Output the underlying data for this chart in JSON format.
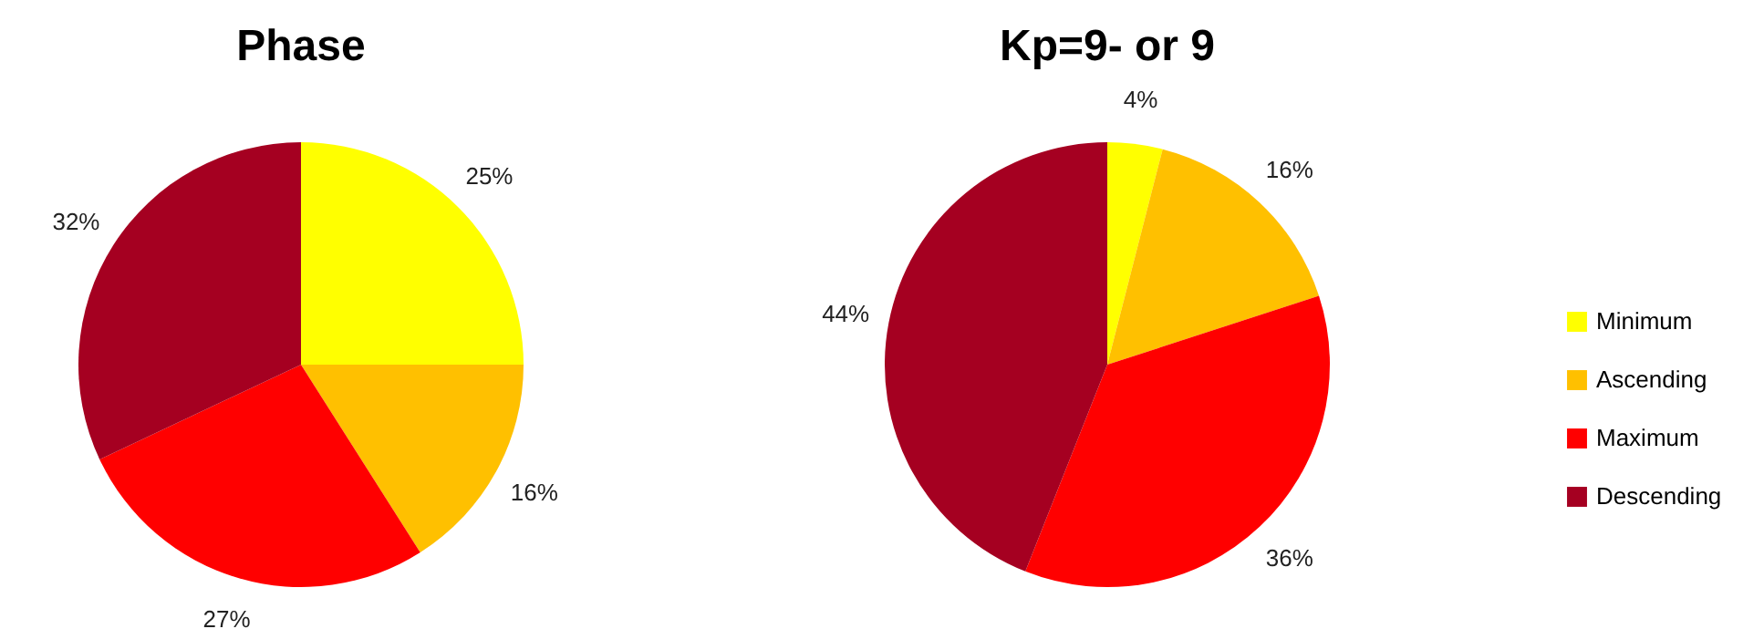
{
  "chart_data": [
    {
      "type": "pie",
      "title": "Phase",
      "categories": [
        null,
        null,
        null,
        null
      ],
      "values": [
        25,
        16,
        27,
        32
      ],
      "colors": [
        "#ffff00",
        "#ffc000",
        "#ff0000",
        "#a50021"
      ],
      "value_labels": [
        "25%",
        "16%",
        "27%",
        "32%"
      ],
      "legend": false
    },
    {
      "type": "pie",
      "title": "Kp=9- or 9",
      "categories": [
        "Minimum",
        "Ascending",
        "Maximum",
        "Descending"
      ],
      "values": [
        4,
        16,
        36,
        44
      ],
      "colors": [
        "#ffff00",
        "#ffc000",
        "#ff0000",
        "#a50021"
      ],
      "value_labels": [
        "4%",
        "16%",
        "36%",
        "44%"
      ],
      "legend": "right"
    }
  ]
}
